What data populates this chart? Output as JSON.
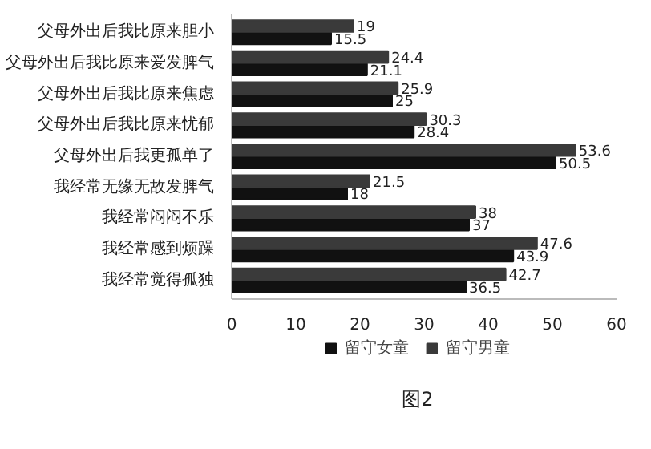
{
  "chart_data": {
    "type": "bar",
    "orientation": "horizontal",
    "categories": [
      "父母外出后我比原来胆小",
      "父母外出后我比原来爱发脾气",
      "父母外出后我比原来焦虑",
      "父母外出后我比原来忧郁",
      "父母外出后我更孤单了",
      "我经常无缘无故发脾气",
      "我经常闷闷不乐",
      "我经常感到烦躁",
      "我经常觉得孤独"
    ],
    "series": [
      {
        "name": "留守女童",
        "color": "#111111",
        "values": [
          15.5,
          21.1,
          25,
          28.4,
          50.5,
          18,
          37,
          43.9,
          36.5
        ]
      },
      {
        "name": "留守男童",
        "color": "#3a3a3a",
        "values": [
          19,
          24.4,
          25.9,
          30.3,
          53.6,
          21.5,
          38,
          47.6,
          42.7
        ]
      }
    ],
    "xlim": [
      0,
      60
    ],
    "xticks": [
      0,
      10,
      20,
      30,
      40,
      50,
      60
    ],
    "grid": false,
    "legend": "bottom",
    "data_labels": true,
    "annotations": [
      "图2"
    ]
  }
}
